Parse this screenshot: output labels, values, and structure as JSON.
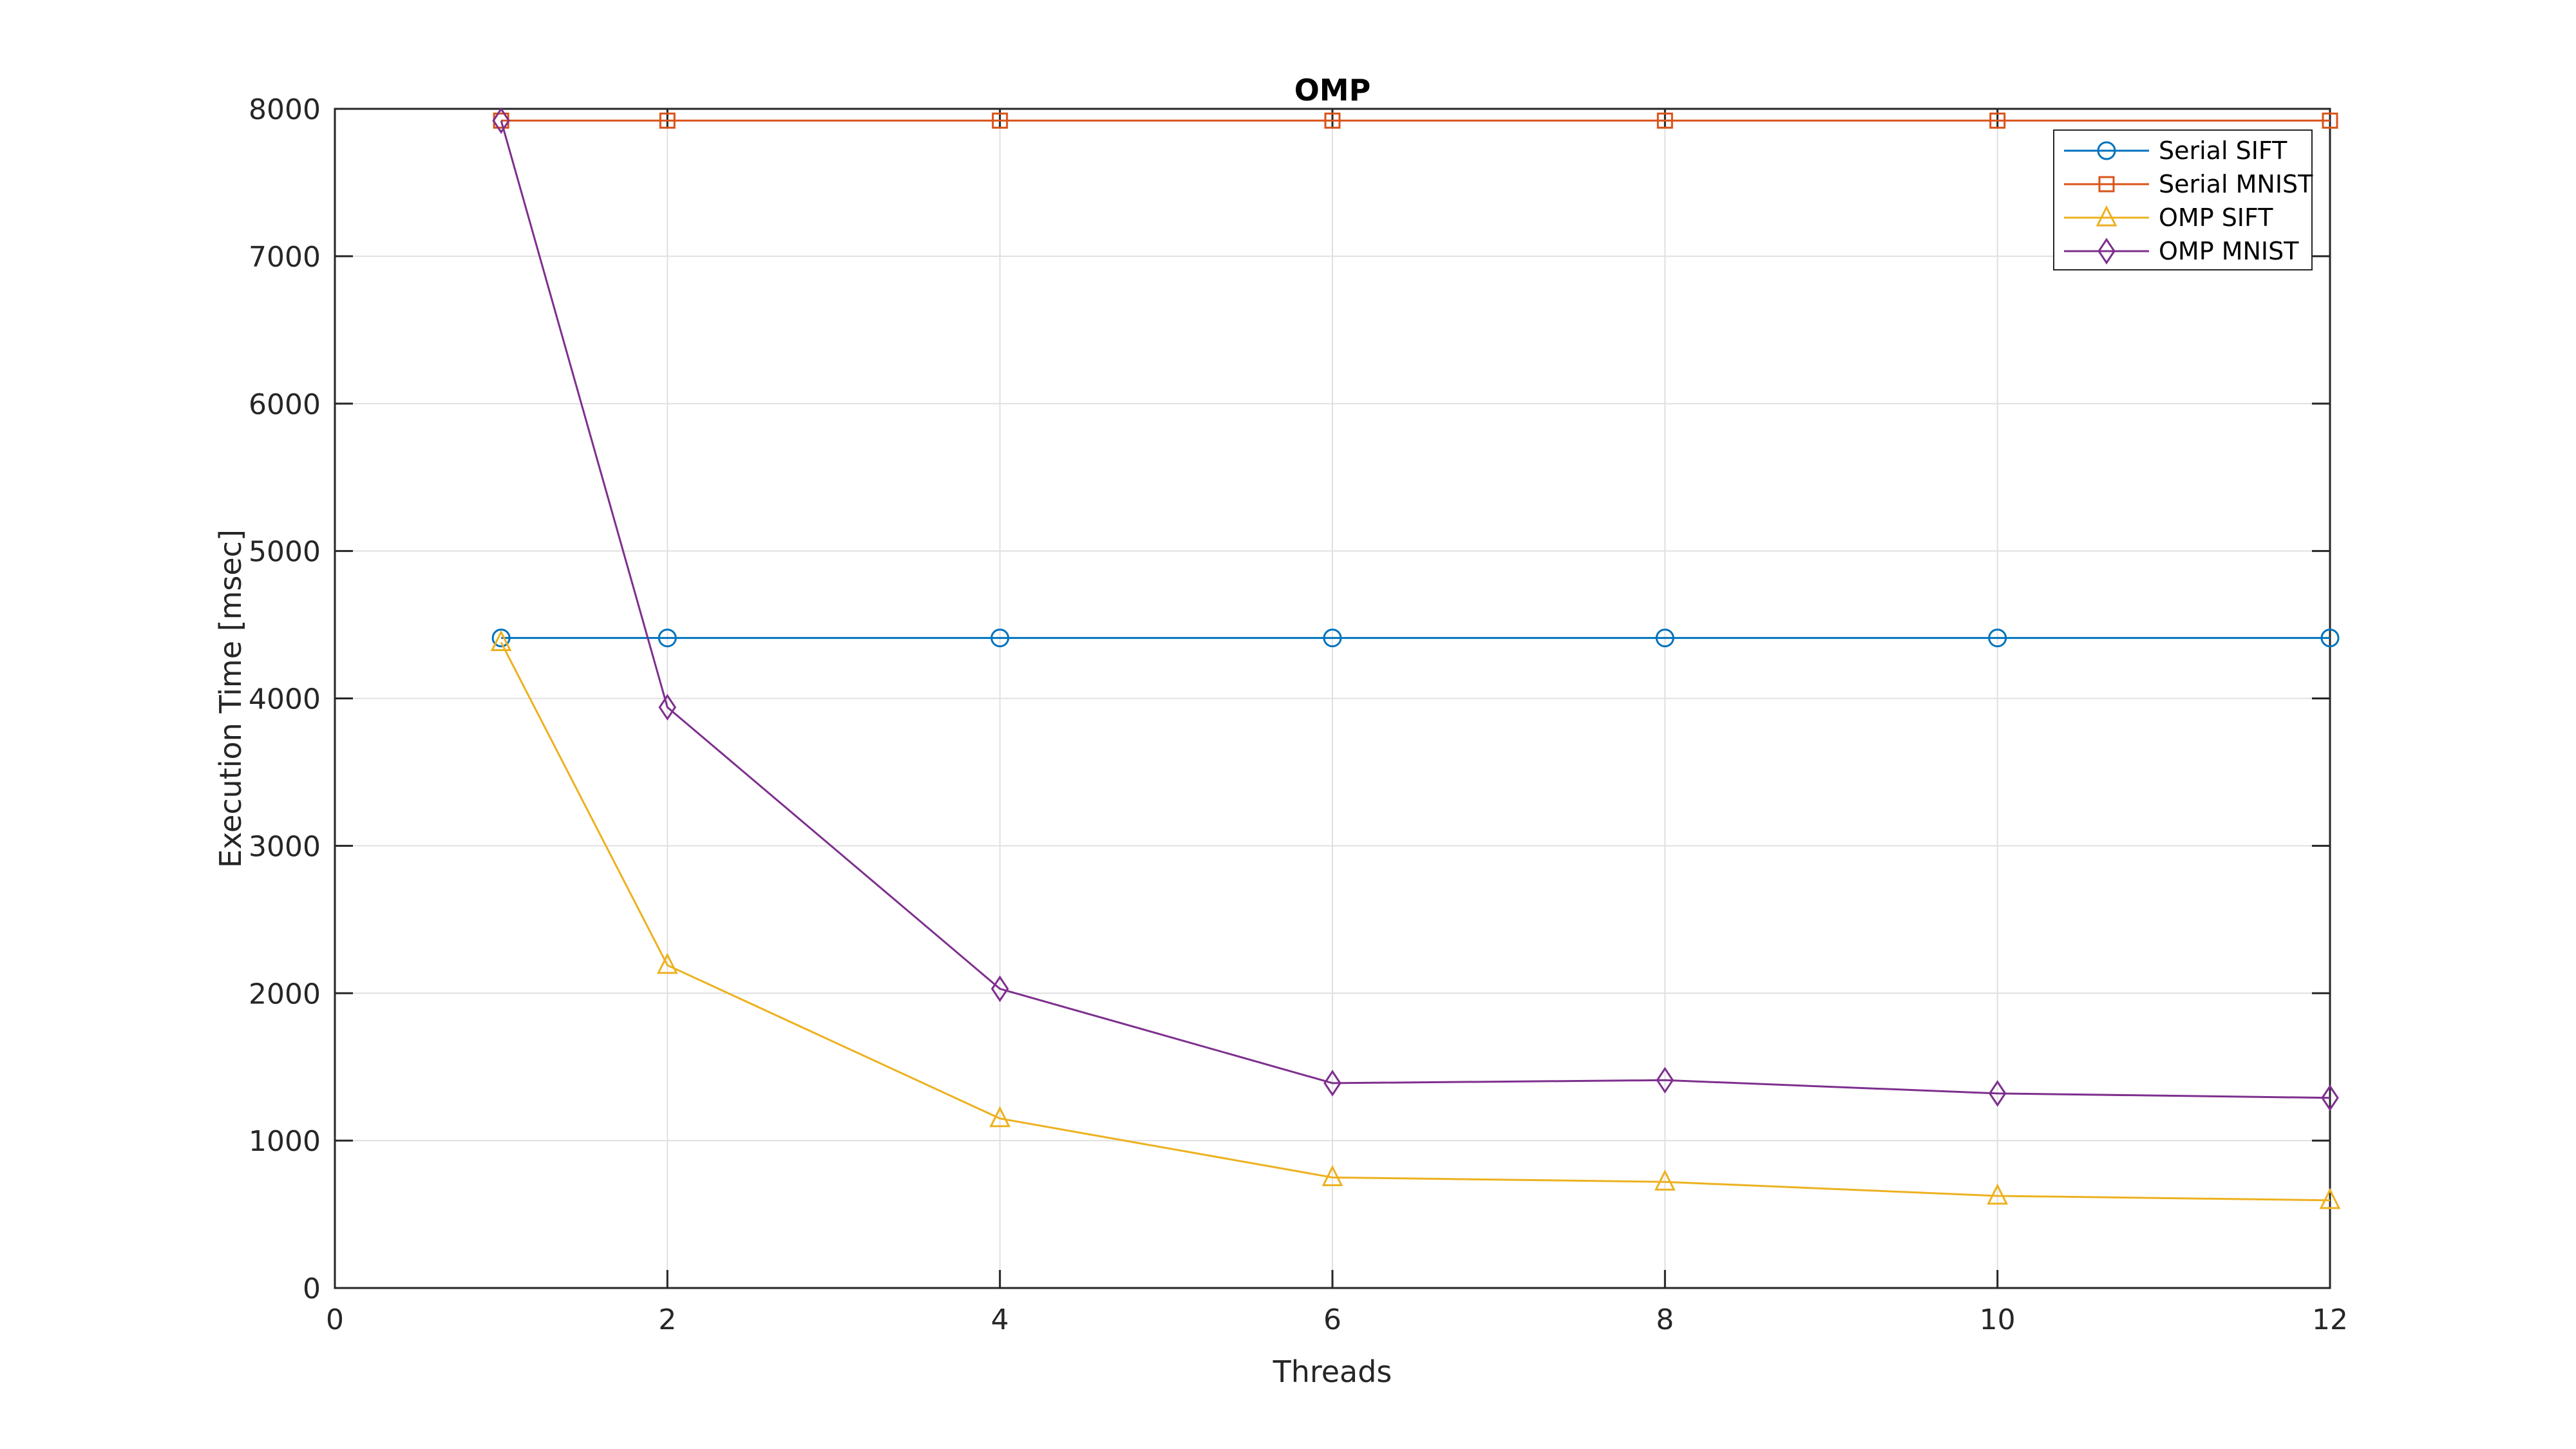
{
  "chart_data": {
    "type": "line",
    "title": "OMP",
    "xlabel": "Threads",
    "ylabel": "Execution Time [msec]",
    "x": [
      1,
      2,
      4,
      6,
      8,
      10,
      12
    ],
    "series": [
      {
        "name": "Serial SIFT",
        "color": "#0072BD",
        "marker": "circle",
        "values": [
          4410,
          4410,
          4410,
          4410,
          4410,
          4410,
          4410
        ]
      },
      {
        "name": "Serial MNIST",
        "color": "#D95319",
        "marker": "square",
        "values": [
          7920,
          7920,
          7920,
          7920,
          7920,
          7920,
          7920
        ]
      },
      {
        "name": "OMP SIFT",
        "color": "#EDB120",
        "marker": "triangle",
        "values": [
          4380,
          2190,
          1150,
          750,
          720,
          625,
          595
        ]
      },
      {
        "name": "OMP MNIST",
        "color": "#7E2F8E",
        "marker": "diamond",
        "values": [
          7920,
          3940,
          2030,
          1390,
          1410,
          1320,
          1290
        ]
      }
    ],
    "xlim": [
      0,
      12
    ],
    "ylim": [
      0,
      8000
    ],
    "xticks": [
      0,
      2,
      4,
      6,
      8,
      10,
      12
    ],
    "yticks": [
      0,
      1000,
      2000,
      3000,
      4000,
      5000,
      6000,
      7000,
      8000
    ],
    "grid": true,
    "legend_position": "northeast",
    "legend_entries": [
      "Serial SIFT",
      "Serial MNIST",
      "OMP SIFT",
      "OMP MNIST"
    ],
    "axis_color": "#262626",
    "grid_color": "#e0e0e0",
    "tick_label_color": "#262626",
    "background": "#ffffff"
  }
}
